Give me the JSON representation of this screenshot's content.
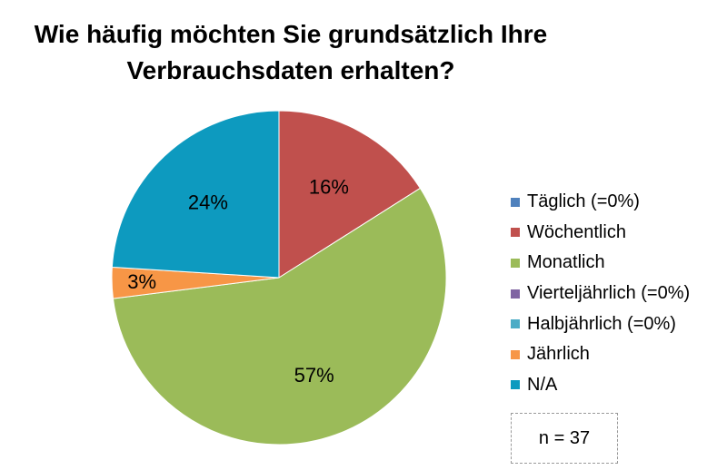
{
  "chart_data": {
    "type": "pie",
    "title_lines": [
      "Wie häufig möchten Sie grundsätzlich Ihre",
      "Verbrauchsdaten erhalten?"
    ],
    "slices": [
      {
        "label": "Täglich (=0%)",
        "value": 0,
        "color": "#4F81BD"
      },
      {
        "label": "Wöchentlich",
        "value": 16,
        "display": "16%",
        "color": "#C0504D"
      },
      {
        "label": "Monatlich",
        "value": 57,
        "display": "57%",
        "color": "#9BBB59"
      },
      {
        "label": "Vierteljährlich (=0%)",
        "value": 0,
        "color": "#8064A2"
      },
      {
        "label": "Halbjährlich (=0%)",
        "value": 0,
        "color": "#4BACC6"
      },
      {
        "label": "Jährlich",
        "value": 3,
        "display": "3%",
        "color": "#F79646"
      },
      {
        "label": "N/A",
        "value": 24,
        "display": "24%",
        "color": "#0D9ABF"
      }
    ],
    "legend_position": "right",
    "note": "n = 37"
  }
}
